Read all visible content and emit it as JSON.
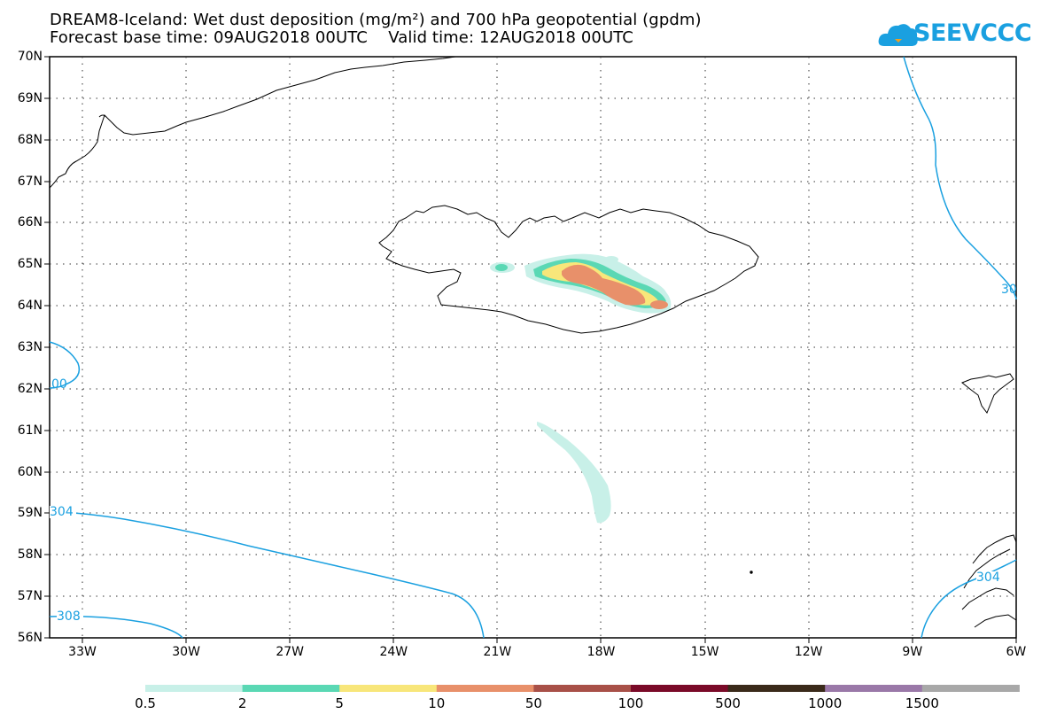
{
  "title": {
    "line1": "DREAM8-Iceland: Wet dust deposition (mg/m²) and 700 hPa geopotential (gpdm)",
    "line2": "Forecast base time: 09AUG2018 00UTC    Valid time: 12AUG2018 00UTC"
  },
  "logo": {
    "text": "SEEVCCC"
  },
  "axes": {
    "lat_labels": [
      "70N",
      "69N",
      "68N",
      "67N",
      "66N",
      "65N",
      "64N",
      "63N",
      "62N",
      "61N",
      "60N",
      "59N",
      "58N",
      "57N",
      "56N"
    ],
    "lon_labels": [
      "33W",
      "30W",
      "27W",
      "24W",
      "21W",
      "18W",
      "15W",
      "12W",
      "9W",
      "6W"
    ]
  },
  "contour_labels": {
    "l304_west": "304",
    "l308_west": "308",
    "l300_west": "00",
    "l304_east": "304",
    "l30_east": "30"
  },
  "colorbar": {
    "colors": [
      "#c8f0e8",
      "#5ad8b4",
      "#f8e67a",
      "#e8906a",
      "#a85048",
      "#7a0a28",
      "#3a2a1a",
      "#9a78a8",
      "#a8a8a8"
    ],
    "labels": [
      "0.5",
      "2",
      "5",
      "10",
      "50",
      "100",
      "500",
      "1000",
      "1500"
    ]
  },
  "colors": {
    "contour": "#1aa0e0",
    "coast": "#000000"
  }
}
